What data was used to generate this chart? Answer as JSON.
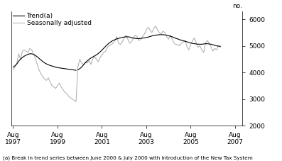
{
  "ylabel_right": "no.",
  "ylim": [
    2000,
    6300
  ],
  "yticks": [
    2000,
    3000,
    4000,
    5000,
    6000
  ],
  "footnote": "(a) Break in trend series between June 2000 & July 2000 with introduction of the New Tax System",
  "legend": [
    "Trend(a)",
    "Seasonally adjusted"
  ],
  "trend_color": "#000000",
  "sa_color": "#aaaaaa",
  "bg_color": "#ffffff",
  "trend_linewidth": 0.8,
  "sa_linewidth": 0.7,
  "xtick_labels": [
    "Aug\n1997",
    "Aug\n1999",
    "Aug\n2001",
    "Aug\n2003",
    "Aug\n2005",
    "Aug\n2007"
  ],
  "xtick_positions": [
    0,
    24,
    48,
    72,
    96,
    120
  ],
  "xlim": [
    -1,
    124
  ],
  "break_idx": 34,
  "trend_data": [
    4200,
    4250,
    4320,
    4420,
    4500,
    4560,
    4610,
    4650,
    4680,
    4700,
    4700,
    4680,
    4640,
    4590,
    4530,
    4470,
    4410,
    4360,
    4320,
    4290,
    4260,
    4240,
    4220,
    4200,
    4180,
    4170,
    4160,
    4150,
    4140,
    4130,
    4120,
    4110,
    4100,
    4090,
    4080,
    4100,
    4140,
    4200,
    4280,
    4360,
    4430,
    4490,
    4540,
    4580,
    4620,
    4660,
    4710,
    4770,
    4840,
    4910,
    4980,
    5050,
    5110,
    5160,
    5200,
    5230,
    5260,
    5280,
    5300,
    5320,
    5330,
    5340,
    5340,
    5330,
    5310,
    5290,
    5280,
    5270,
    5270,
    5280,
    5290,
    5300,
    5310,
    5330,
    5350,
    5370,
    5390,
    5400,
    5410,
    5420,
    5420,
    5420,
    5410,
    5400,
    5380,
    5360,
    5340,
    5310,
    5280,
    5260,
    5230,
    5210,
    5190,
    5170,
    5150,
    5130,
    5110,
    5090,
    5080,
    5070,
    5060,
    5060,
    5060,
    5070,
    5080,
    5080,
    5070,
    5060,
    5040,
    5020,
    5000,
    4990,
    4980
  ],
  "sa_data": [
    4100,
    4200,
    4350,
    4700,
    4500,
    4800,
    4850,
    4800,
    4750,
    4900,
    4850,
    4700,
    4550,
    4300,
    4100,
    3950,
    3850,
    3750,
    3700,
    3800,
    3650,
    3500,
    3450,
    3400,
    3500,
    3600,
    3450,
    3350,
    3250,
    3200,
    3100,
    3050,
    3000,
    2950,
    2900,
    4200,
    4500,
    4350,
    4300,
    4400,
    4350,
    4450,
    4300,
    4500,
    4600,
    4500,
    4400,
    4550,
    4650,
    4750,
    4800,
    4950,
    5000,
    5050,
    5100,
    5200,
    5350,
    5100,
    5050,
    5150,
    5300,
    5400,
    5250,
    5100,
    5150,
    5300,
    5400,
    5350,
    5200,
    5250,
    5350,
    5450,
    5600,
    5700,
    5600,
    5500,
    5650,
    5750,
    5600,
    5500,
    5450,
    5550,
    5500,
    5350,
    5250,
    5400,
    5250,
    5100,
    5050,
    5050,
    5000,
    5100,
    5150,
    5200,
    4950,
    4850,
    5050,
    5200,
    5300,
    5100,
    4950,
    5000,
    4850,
    4750,
    5100,
    5200,
    5100,
    4950,
    4800,
    4900,
    4850,
    5000,
    4950
  ]
}
